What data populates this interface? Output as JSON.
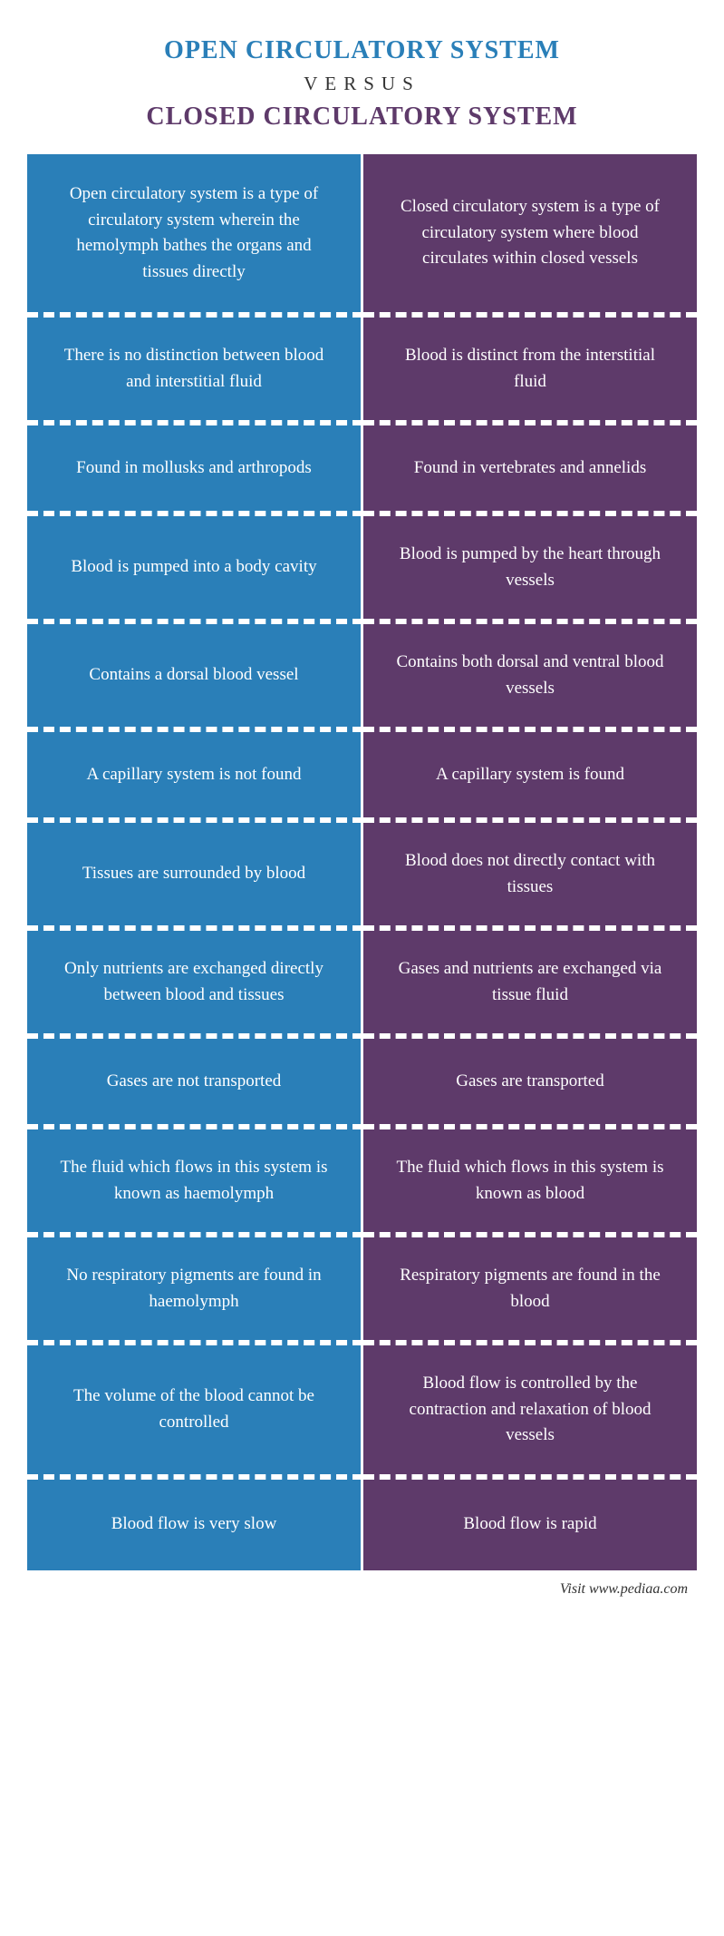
{
  "header": {
    "title_open": "OPEN CIRCULATORY SYSTEM",
    "versus": "VERSUS",
    "title_closed": "CLOSED CIRCULATORY SYSTEM"
  },
  "colors": {
    "open": "#2a7fb8",
    "closed": "#5e3a6a",
    "text": "#ffffff",
    "divider": "#ffffff"
  },
  "typography": {
    "title_fontsize": 28,
    "versus_fontsize": 21,
    "cell_fontsize": 19,
    "footer_fontsize": 16,
    "font_family": "Georgia, serif"
  },
  "rows": [
    {
      "open": "Open circulatory system is a type of circulatory system wherein the hemolymph bathes the organs and tissues directly",
      "closed": "Closed circulatory system is a  type of circulatory system where blood circulates within closed vessels"
    },
    {
      "open": "There is no distinction between blood and interstitial fluid",
      "closed": "Blood is distinct from the interstitial fluid"
    },
    {
      "open": "Found in mollusks and arthropods",
      "closed": "Found in vertebrates and annelids"
    },
    {
      "open": "Blood is pumped into a body cavity",
      "closed": "Blood is pumped by the heart through vessels"
    },
    {
      "open": "Contains a dorsal blood vessel",
      "closed": "Contains both dorsal and ventral blood vessels"
    },
    {
      "open": "A capillary system is not found",
      "closed": "A capillary system is found"
    },
    {
      "open": "Tissues are surrounded by blood",
      "closed": "Blood does not directly contact with tissues"
    },
    {
      "open": "Only nutrients are exchanged directly between blood and tissues",
      "closed": "Gases and nutrients are exchanged via tissue fluid"
    },
    {
      "open": "Gases are not transported",
      "closed": "Gases are transported"
    },
    {
      "open": "The fluid which flows in this system is known as haemolymph",
      "closed": "The fluid which flows in this  system is known as blood"
    },
    {
      "open": "No respiratory pigments are found in haemolymph",
      "closed": "Respiratory pigments are found in the blood"
    },
    {
      "open": "The volume of the blood cannot be controlled",
      "closed": "Blood flow is controlled by the contraction and relaxation of blood vessels"
    },
    {
      "open": "Blood flow is very slow",
      "closed": "Blood flow is rapid"
    }
  ],
  "footer": "Visit www.pediaa.com"
}
